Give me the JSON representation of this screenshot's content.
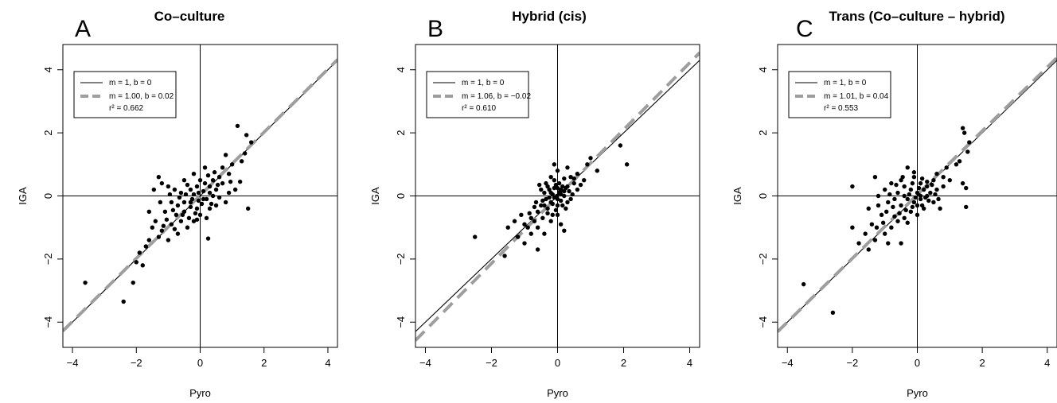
{
  "chart_data": [
    {
      "type": "scatter",
      "panel_letter": "A",
      "title": "Co–culture",
      "xlabel": "Pyro",
      "ylabel": "IGA",
      "xlim": [
        -4.3,
        4.3
      ],
      "ylim": [
        -4.8,
        4.8
      ],
      "xticks": [
        -4,
        -2,
        0,
        2,
        4
      ],
      "yticks": [
        -4,
        -2,
        0,
        2,
        4
      ],
      "xtick_labels": [
        "−4",
        "−2",
        "0",
        "2",
        "4"
      ],
      "ytick_labels": [
        "−4",
        "−2",
        "0",
        "2",
        "4"
      ],
      "grid": false,
      "legend_position": "top-left",
      "legend": {
        "line1": "m = 1, b = 0",
        "line2": "m = 1.00, b = 0.02",
        "line3": "r² = 0.662"
      },
      "reference_line": {
        "slope": 1,
        "intercept": 0
      },
      "fit_line": {
        "slope": 1.0,
        "intercept": 0.02
      },
      "colors": {
        "points": "#000000",
        "fit": "#9e9e9e",
        "ref": "#000000"
      },
      "points": [
        [
          1.17,
          2.22
        ],
        [
          1.45,
          1.93
        ],
        [
          1.6,
          1.7
        ],
        [
          1.4,
          1.35
        ],
        [
          0.8,
          1.3
        ],
        [
          0.4,
          0.5
        ],
        [
          1.3,
          1.1
        ],
        [
          1.0,
          1.0
        ],
        [
          0.6,
          0.6
        ],
        [
          0.15,
          0.9
        ],
        [
          -0.2,
          0.7
        ],
        [
          -0.5,
          0.5
        ],
        [
          0.9,
          0.7
        ],
        [
          0.7,
          0.4
        ],
        [
          1.25,
          0.45
        ],
        [
          0.3,
          0.3
        ],
        [
          0.5,
          0.2
        ],
        [
          0.2,
          -0.1
        ],
        [
          -0.1,
          0.3
        ],
        [
          -0.3,
          0.2
        ],
        [
          -0.6,
          0.1
        ],
        [
          -0.8,
          0.2
        ],
        [
          -1.0,
          0.3
        ],
        [
          -1.3,
          0.6
        ],
        [
          -1.2,
          0.4
        ],
        [
          -0.9,
          -0.2
        ],
        [
          -0.7,
          -0.3
        ],
        [
          -0.5,
          -0.5
        ],
        [
          -0.3,
          -0.2
        ],
        [
          -0.1,
          -0.4
        ],
        [
          0.1,
          -0.1
        ],
        [
          0.3,
          -0.4
        ],
        [
          0.5,
          -0.3
        ],
        [
          0.8,
          -0.2
        ],
        [
          -1.1,
          -0.5
        ],
        [
          -1.4,
          -0.8
        ],
        [
          -1.5,
          -1.0
        ],
        [
          -1.2,
          -1.1
        ],
        [
          -0.9,
          -0.9
        ],
        [
          -0.6,
          -0.8
        ],
        [
          -0.4,
          -1.0
        ],
        [
          -0.2,
          -0.8
        ],
        [
          0.0,
          -0.6
        ],
        [
          0.2,
          -0.7
        ],
        [
          -1.7,
          -1.6
        ],
        [
          -1.9,
          -1.8
        ],
        [
          -2.0,
          -2.1
        ],
        [
          -1.6,
          -1.4
        ],
        [
          -1.3,
          -1.3
        ],
        [
          -1.0,
          -1.4
        ],
        [
          -0.7,
          -1.2
        ],
        [
          -3.6,
          -2.75
        ],
        [
          -2.4,
          -3.35
        ],
        [
          -2.1,
          -2.75
        ],
        [
          -1.8,
          -2.2
        ],
        [
          0.25,
          -1.35
        ],
        [
          1.5,
          -0.4
        ],
        [
          1.1,
          0.2
        ],
        [
          0.9,
          0.1
        ],
        [
          0.0,
          0.5
        ],
        [
          0.15,
          0.4
        ],
        [
          -0.05,
          0.1
        ],
        [
          0.05,
          -0.25
        ],
        [
          -0.25,
          -0.1
        ],
        [
          -0.45,
          0.05
        ],
        [
          -0.65,
          -0.05
        ],
        [
          -0.85,
          -0.45
        ],
        [
          -1.05,
          -0.75
        ],
        [
          -1.25,
          -0.2
        ],
        [
          -0.55,
          -0.6
        ],
        [
          0.4,
          0.0
        ],
        [
          0.6,
          -0.05
        ],
        [
          0.35,
          -0.25
        ],
        [
          -0.15,
          -0.55
        ],
        [
          -0.35,
          -0.7
        ],
        [
          -0.75,
          -0.6
        ],
        [
          0.7,
          0.9
        ],
        [
          0.45,
          0.75
        ],
        [
          0.25,
          0.65
        ],
        [
          -0.4,
          0.35
        ],
        [
          -1.45,
          0.2
        ],
        [
          -1.6,
          -0.5
        ],
        [
          -0.95,
          0.05
        ],
        [
          0.1,
          0.15
        ],
        [
          -0.05,
          -0.15
        ],
        [
          0.3,
          0.1
        ],
        [
          -0.2,
          0.05
        ],
        [
          0.55,
          0.35
        ],
        [
          0.95,
          0.45
        ],
        [
          -0.3,
          -0.35
        ],
        [
          -0.5,
          -0.2
        ],
        [
          -0.1,
          -0.75
        ],
        [
          -0.8,
          -1.05
        ],
        [
          -1.15,
          -0.95
        ]
      ]
    },
    {
      "type": "scatter",
      "panel_letter": "B",
      "title": "Hybrid (cis)",
      "xlabel": "Pyro",
      "ylabel": "IGA",
      "xlim": [
        -4.3,
        4.3
      ],
      "ylim": [
        -4.8,
        4.8
      ],
      "xticks": [
        -4,
        -2,
        0,
        2,
        4
      ],
      "yticks": [
        -4,
        -2,
        0,
        2,
        4
      ],
      "xtick_labels": [
        "−4",
        "−2",
        "0",
        "2",
        "4"
      ],
      "ytick_labels": [
        "−4",
        "−2",
        "0",
        "2",
        "4"
      ],
      "grid": false,
      "legend_position": "top-left",
      "legend": {
        "line1": "m = 1, b = 0",
        "line2": "m = 1.06, b = −0.02",
        "line3": "r² = 0.610"
      },
      "reference_line": {
        "slope": 1,
        "intercept": 0
      },
      "fit_line": {
        "slope": 1.06,
        "intercept": -0.02
      },
      "colors": {
        "points": "#000000",
        "fit": "#9e9e9e",
        "ref": "#000000"
      },
      "points": [
        [
          1.9,
          1.6
        ],
        [
          2.1,
          1.0
        ],
        [
          1.0,
          1.2
        ],
        [
          0.9,
          1.0
        ],
        [
          1.2,
          0.8
        ],
        [
          0.6,
          0.7
        ],
        [
          0.8,
          0.5
        ],
        [
          0.5,
          0.4
        ],
        [
          0.3,
          0.3
        ],
        [
          0.1,
          0.2
        ],
        [
          -0.1,
          0.5
        ],
        [
          -0.3,
          0.3
        ],
        [
          -0.5,
          0.2
        ],
        [
          0.2,
          0.0
        ],
        [
          0.4,
          -0.1
        ],
        [
          0.0,
          -0.1
        ],
        [
          -0.2,
          -0.2
        ],
        [
          -0.4,
          -0.3
        ],
        [
          -0.6,
          -0.5
        ],
        [
          -0.8,
          -0.7
        ],
        [
          -1.0,
          -0.9
        ],
        [
          -1.3,
          -0.8
        ],
        [
          -1.5,
          -1.0
        ],
        [
          -1.2,
          -1.3
        ],
        [
          -1.0,
          -1.5
        ],
        [
          -0.8,
          -1.2
        ],
        [
          -0.6,
          -1.0
        ],
        [
          -0.4,
          -1.2
        ],
        [
          -0.2,
          -0.8
        ],
        [
          0.0,
          -0.6
        ],
        [
          0.1,
          -0.9
        ],
        [
          0.2,
          -1.1
        ],
        [
          -0.6,
          -1.7
        ],
        [
          -1.6,
          -1.9
        ],
        [
          -2.5,
          -1.3
        ],
        [
          -0.1,
          1.0
        ],
        [
          0.0,
          0.8
        ],
        [
          -0.2,
          0.6
        ],
        [
          0.3,
          0.9
        ],
        [
          0.4,
          0.6
        ],
        [
          -0.05,
          0.35
        ],
        [
          0.05,
          0.1
        ],
        [
          -0.15,
          0.05
        ],
        [
          -0.25,
          -0.05
        ],
        [
          -0.35,
          -0.1
        ],
        [
          0.15,
          -0.3
        ],
        [
          0.25,
          -0.4
        ],
        [
          -0.05,
          -0.45
        ],
        [
          -0.3,
          -0.55
        ],
        [
          -0.45,
          -0.7
        ],
        [
          -0.7,
          -0.8
        ],
        [
          -0.9,
          -1.0
        ],
        [
          0.35,
          0.15
        ],
        [
          0.45,
          0.05
        ],
        [
          -0.1,
          0.25
        ],
        [
          0.05,
          0.4
        ],
        [
          -0.4,
          0.1
        ],
        [
          -0.55,
          0.35
        ],
        [
          0.6,
          0.2
        ],
        [
          0.7,
          0.35
        ],
        [
          -0.15,
          -0.25
        ],
        [
          0.1,
          -0.15
        ],
        [
          -0.02,
          0.0
        ],
        [
          0.08,
          0.15
        ],
        [
          -0.25,
          0.2
        ],
        [
          -0.35,
          0.4
        ],
        [
          0.2,
          0.55
        ],
        [
          0.15,
          0.3
        ],
        [
          -0.1,
          -0.05
        ],
        [
          -0.2,
          0.1
        ],
        [
          0.3,
          -0.2
        ],
        [
          -0.5,
          -0.3
        ],
        [
          -0.65,
          -0.2
        ],
        [
          0.0,
          0.25
        ],
        [
          0.1,
          0.05
        ],
        [
          -0.3,
          -0.4
        ],
        [
          -0.7,
          -0.35
        ],
        [
          -0.85,
          -0.55
        ],
        [
          0.5,
          0.55
        ],
        [
          -1.1,
          -0.6
        ],
        [
          0.0,
          -0.3
        ],
        [
          0.2,
          0.15
        ],
        [
          -0.45,
          -0.15
        ],
        [
          -0.15,
          -0.6
        ],
        [
          0.25,
          0.25
        ]
      ]
    },
    {
      "type": "scatter",
      "panel_letter": "C",
      "title": "Trans (Co–culture – hybrid)",
      "xlabel": "Pyro",
      "ylabel": "IGA",
      "xlim": [
        -4.3,
        4.3
      ],
      "ylim": [
        -4.8,
        4.8
      ],
      "xticks": [
        -4,
        -2,
        0,
        2,
        4
      ],
      "yticks": [
        -4,
        -2,
        0,
        2,
        4
      ],
      "xtick_labels": [
        "−4",
        "−2",
        "0",
        "2",
        "4"
      ],
      "ytick_labels": [
        "−4",
        "−2",
        "0",
        "2",
        "4"
      ],
      "grid": false,
      "legend_position": "top-left",
      "legend": {
        "line1": "m = 1, b = 0",
        "line2": "m = 1.01, b = 0.04",
        "line3": "r² = 0.553"
      },
      "reference_line": {
        "slope": 1,
        "intercept": 0
      },
      "fit_line": {
        "slope": 1.01,
        "intercept": 0.04
      },
      "colors": {
        "points": "#000000",
        "fit": "#9e9e9e",
        "ref": "#000000"
      },
      "points": [
        [
          1.4,
          2.15
        ],
        [
          1.45,
          2.0
        ],
        [
          1.6,
          1.7
        ],
        [
          1.55,
          1.4
        ],
        [
          1.2,
          1.0
        ],
        [
          1.3,
          1.1
        ],
        [
          0.9,
          0.9
        ],
        [
          0.6,
          0.7
        ],
        [
          1.4,
          0.4
        ],
        [
          1.5,
          0.25
        ],
        [
          1.5,
          -0.35
        ],
        [
          0.8,
          0.3
        ],
        [
          0.5,
          0.5
        ],
        [
          0.3,
          0.3
        ],
        [
          0.1,
          0.4
        ],
        [
          -0.1,
          0.6
        ],
        [
          -0.3,
          0.9
        ],
        [
          -0.5,
          0.5
        ],
        [
          -0.8,
          0.4
        ],
        [
          -1.0,
          0.2
        ],
        [
          -1.3,
          0.6
        ],
        [
          -2.0,
          0.3
        ],
        [
          -1.2,
          0.0
        ],
        [
          -0.9,
          -0.2
        ],
        [
          -0.7,
          -0.1
        ],
        [
          -0.5,
          -0.3
        ],
        [
          -0.3,
          -0.1
        ],
        [
          -0.1,
          -0.2
        ],
        [
          0.1,
          -0.1
        ],
        [
          0.3,
          0.0
        ],
        [
          0.5,
          -0.2
        ],
        [
          0.7,
          -0.4
        ],
        [
          -1.1,
          -0.6
        ],
        [
          -1.4,
          -0.9
        ],
        [
          -1.6,
          -1.2
        ],
        [
          -1.3,
          -1.4
        ],
        [
          -1.0,
          -1.2
        ],
        [
          -0.8,
          -1.0
        ],
        [
          -0.6,
          -0.8
        ],
        [
          -0.4,
          -0.7
        ],
        [
          -0.2,
          -0.5
        ],
        [
          0.0,
          -0.6
        ],
        [
          0.2,
          -0.4
        ],
        [
          -1.5,
          -1.7
        ],
        [
          -1.8,
          -1.5
        ],
        [
          -2.0,
          -1.0
        ],
        [
          -0.5,
          -1.5
        ],
        [
          -3.5,
          -2.8
        ],
        [
          -2.6,
          -3.7
        ],
        [
          -0.2,
          0.2
        ],
        [
          0.0,
          0.1
        ],
        [
          0.2,
          0.2
        ],
        [
          -0.4,
          0.3
        ],
        [
          -0.6,
          0.1
        ],
        [
          0.4,
          0.1
        ],
        [
          0.6,
          0.2
        ],
        [
          -0.15,
          -0.35
        ],
        [
          0.15,
          -0.3
        ],
        [
          -0.35,
          -0.45
        ],
        [
          -0.55,
          -0.55
        ],
        [
          -0.75,
          -0.35
        ],
        [
          -0.95,
          -0.5
        ],
        [
          0.35,
          -0.15
        ],
        [
          0.55,
          0.05
        ],
        [
          0.05,
          0.25
        ],
        [
          -0.05,
          -0.05
        ],
        [
          -0.25,
          0.05
        ],
        [
          0.25,
          -0.05
        ],
        [
          0.8,
          0.6
        ],
        [
          1.0,
          0.5
        ],
        [
          -1.2,
          -0.3
        ],
        [
          -1.5,
          -0.4
        ],
        [
          -0.1,
          0.75
        ],
        [
          0.15,
          0.55
        ],
        [
          -0.45,
          0.6
        ],
        [
          -0.65,
          0.35
        ],
        [
          -0.85,
          0.05
        ],
        [
          0.45,
          0.35
        ],
        [
          0.65,
          -0.1
        ],
        [
          -0.3,
          -0.85
        ],
        [
          -0.7,
          -0.65
        ],
        [
          -1.05,
          -0.85
        ],
        [
          0.1,
          0.0
        ],
        [
          -0.15,
          0.4
        ],
        [
          0.3,
          0.45
        ],
        [
          -0.9,
          -1.5
        ],
        [
          -1.25,
          -1.0
        ],
        [
          -0.4,
          0.0
        ],
        [
          0.0,
          -0.3
        ]
      ]
    }
  ]
}
